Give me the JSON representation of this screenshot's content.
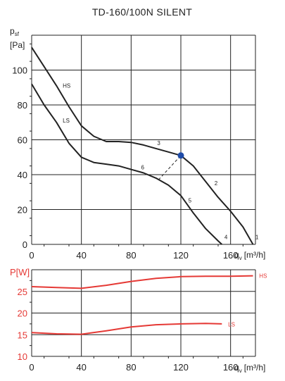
{
  "chart_data": [
    {
      "type": "line",
      "title": "TD-160/100N SILENT",
      "ylabel_main": "p",
      "ylabel_sub": "sf",
      "ylabel_unit": "[Pa]",
      "xlabel_main": "q",
      "xlabel_sub": "v",
      "xlabel_unit": "[m³/h]",
      "xlim": [
        0,
        180
      ],
      "ylim": [
        0,
        120
      ],
      "x_ticks": [
        0,
        40,
        80,
        120,
        160
      ],
      "y_ticks": [
        0,
        20,
        40,
        60,
        80,
        100
      ],
      "grid": true,
      "colors": {
        "curve": "#222222",
        "point": "#1e4ba8"
      },
      "series": [
        {
          "name": "HS",
          "x": [
            0,
            10,
            20,
            30,
            40,
            50,
            60,
            70,
            80,
            90,
            100,
            110,
            120,
            130,
            140,
            150,
            160,
            170,
            178
          ],
          "y": [
            113,
            102,
            91,
            79,
            68,
            62,
            59,
            59,
            58.5,
            57,
            55,
            53,
            51,
            45,
            36,
            27,
            19,
            10,
            0
          ]
        },
        {
          "name": "LS",
          "x": [
            0,
            10,
            20,
            30,
            40,
            50,
            60,
            70,
            80,
            90,
            100,
            110,
            120,
            130,
            140,
            150,
            153
          ],
          "y": [
            92,
            80,
            70,
            58,
            50,
            47,
            46,
            45,
            43,
            41,
            38,
            34,
            28,
            18,
            9,
            2,
            0
          ]
        },
        {
          "name": "System curve",
          "x": [
            102,
            120
          ],
          "y": [
            37,
            51
          ]
        }
      ],
      "operating_point": {
        "x": 120,
        "y": 51
      },
      "curve_labels": [
        {
          "text": "HS",
          "x": 25,
          "y": 90
        },
        {
          "text": "LS",
          "x": 25,
          "y": 70
        },
        {
          "text": "1",
          "x": 180,
          "y": 3
        },
        {
          "text": "2",
          "x": 147,
          "y": 34
        },
        {
          "text": "3",
          "x": 101,
          "y": 57
        },
        {
          "text": "4",
          "x": 155,
          "y": 3
        },
        {
          "text": "5",
          "x": 126,
          "y": 24
        },
        {
          "text": "6",
          "x": 88,
          "y": 43
        }
      ]
    },
    {
      "type": "line",
      "ylabel": "P[W]",
      "xlabel_main": "q",
      "xlabel_sub": "v",
      "xlabel_unit": "[m³/h]",
      "xlim": [
        0,
        180
      ],
      "ylim": [
        10,
        30
      ],
      "x_ticks": [
        0,
        40,
        80,
        120,
        160
      ],
      "y_ticks": [
        10,
        15,
        20,
        25
      ],
      "grid": true,
      "colors": {
        "curve": "#e53935",
        "axis_text": "#e53935"
      },
      "series": [
        {
          "name": "HS",
          "x": [
            0,
            20,
            40,
            60,
            80,
            100,
            120,
            140,
            160,
            178
          ],
          "y": [
            26.1,
            25.9,
            25.7,
            26.4,
            27.3,
            28.0,
            28.4,
            28.5,
            28.5,
            28.6
          ]
        },
        {
          "name": "LS",
          "x": [
            0,
            20,
            40,
            60,
            80,
            100,
            120,
            140,
            153
          ],
          "y": [
            15.5,
            15.2,
            15.1,
            15.9,
            16.8,
            17.3,
            17.5,
            17.6,
            17.5
          ]
        }
      ],
      "curve_labels": [
        {
          "text": "HS",
          "x": 183,
          "y": 28.6
        },
        {
          "text": "LS",
          "x": 158,
          "y": 17.4
        }
      ]
    }
  ]
}
